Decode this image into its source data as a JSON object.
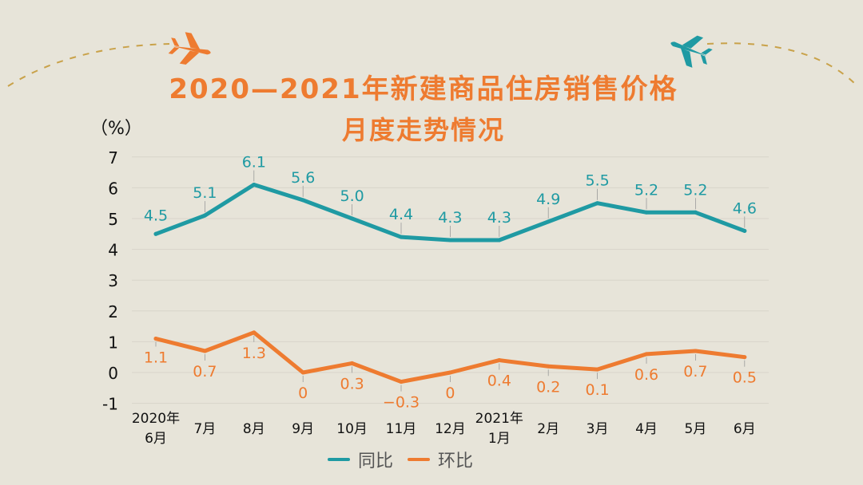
{
  "title_line1": "2020—2021年新建商品住房销售价格",
  "title_line2": "月度走势情况",
  "unit_label": "（%）",
  "colors": {
    "background": "#e7e4d9",
    "yoy": "#1f9aa3",
    "mom": "#ee7b30",
    "title": "#ee7b30",
    "grid": "#d6d3c8"
  },
  "icons": {
    "left_plane": "airplane-icon",
    "right_plane": "airplane-icon"
  },
  "chart_data": {
    "type": "line",
    "title": "2020—2021年新建商品住房销售价格月度走势情况",
    "ylabel": "（%）",
    "ylim": [
      -1,
      7
    ],
    "yticks": [
      "7",
      "6",
      "5",
      "4",
      "3",
      "2",
      "1",
      "0",
      "-1"
    ],
    "ytick_values": [
      7,
      6,
      5,
      4,
      3,
      2,
      1,
      0,
      -1
    ],
    "grid": true,
    "legend_position": "bottom",
    "categories": [
      [
        "2020年",
        "6月"
      ],
      [
        "7月"
      ],
      [
        "8月"
      ],
      [
        "9月"
      ],
      [
        "10月"
      ],
      [
        "11月"
      ],
      [
        "12月"
      ],
      [
        "2021年",
        "1月"
      ],
      [
        "2月"
      ],
      [
        "3月"
      ],
      [
        "4月"
      ],
      [
        "5月"
      ],
      [
        "6月"
      ]
    ],
    "series": [
      {
        "name": "同比",
        "color": "#1f9aa3",
        "values": [
          4.5,
          5.1,
          6.1,
          5.6,
          5.0,
          4.4,
          4.3,
          4.3,
          4.9,
          5.5,
          5.2,
          5.2,
          4.6
        ],
        "labels": [
          "4.5",
          "5.1",
          "6.1",
          "5.6",
          "5.0",
          "4.4",
          "4.3",
          "4.3",
          "4.9",
          "5.5",
          "5.2",
          "5.2",
          "4.6"
        ]
      },
      {
        "name": "环比",
        "color": "#ee7b30",
        "values": [
          1.1,
          0.7,
          1.3,
          0,
          0.3,
          -0.3,
          0,
          0.4,
          0.2,
          0.1,
          0.6,
          0.7,
          0.5
        ],
        "labels": [
          "1.1",
          "0.7",
          "1.3",
          "0",
          "0.3",
          "−0.3",
          "0",
          "0.4",
          "0.2",
          "0.1",
          "0.6",
          "0.7",
          "0.5"
        ]
      }
    ]
  }
}
